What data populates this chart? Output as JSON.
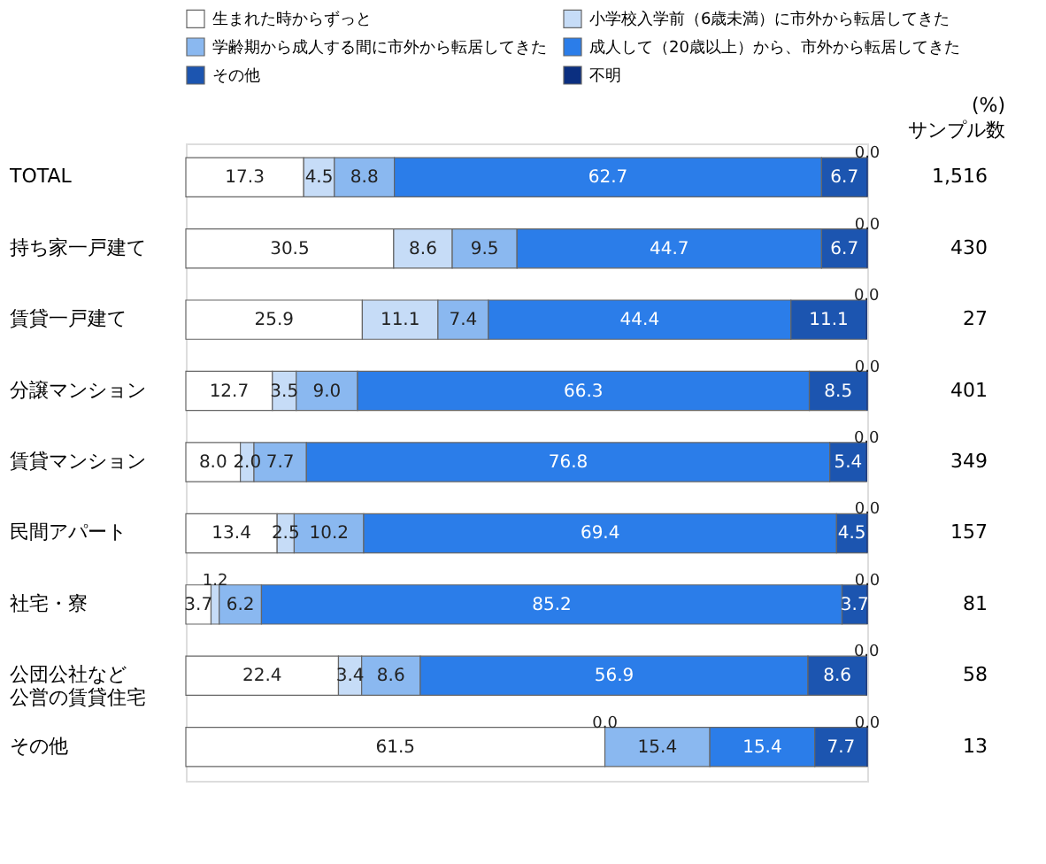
{
  "chart_data": {
    "type": "bar",
    "orientation": "horizontal",
    "stacked": true,
    "legend": "top",
    "categories": [
      "TOTAL",
      "持ち家一戸建て",
      "賃貸一戸建て",
      "分譲マンション",
      "賃貸マンション",
      "民間アパート",
      "社宅・寮",
      "公団公社など公営の賃貸住宅",
      "その他"
    ],
    "y2_categories": [
      "1,516",
      "430",
      "27",
      "401",
      "349",
      "157",
      "81",
      "58",
      "13"
    ],
    "annotations": [
      "(%)",
      "サンプル数"
    ],
    "series": [
      {
        "name": "生まれた時からずっと",
        "color": "#ffffff",
        "values": [
          17.3,
          30.5,
          25.9,
          12.7,
          8.0,
          13.4,
          3.7,
          22.4,
          61.5
        ],
        "value_labels": [
          "17.3",
          "30.5",
          "25.9",
          "12.7",
          "8.0",
          "13.4",
          "3.7",
          "22.4",
          "61.5"
        ]
      },
      {
        "name": "小学校入学前（6歳未満）に市外から転居してきた",
        "color": "#c6dcf7",
        "values": [
          4.5,
          8.6,
          11.1,
          3.5,
          2.0,
          2.5,
          1.2,
          3.4,
          0.0
        ],
        "value_labels": [
          "4.5",
          "8.6",
          "11.1",
          "3.5",
          "2.0",
          "2.5",
          "1.2",
          "3.4",
          "0.0"
        ]
      },
      {
        "name": "学齢期から成人する間に市外から転居してきた",
        "color": "#8ab8f0",
        "values": [
          8.8,
          9.5,
          7.4,
          9.0,
          7.7,
          10.2,
          6.2,
          8.6,
          15.4
        ],
        "value_labels": [
          "8.8",
          "9.5",
          "7.4",
          "9.0",
          "7.7",
          "10.2",
          "6.2",
          "8.6",
          "15.4"
        ]
      },
      {
        "name": "成人して（20歳以上）から、市外から転居してきた",
        "color": "#2b7de9",
        "values": [
          62.7,
          44.7,
          44.4,
          66.3,
          76.8,
          69.4,
          85.2,
          56.9,
          15.4
        ],
        "value_labels": [
          "62.7",
          "44.7",
          "44.4",
          "66.3",
          "76.8",
          "69.4",
          "85.2",
          "56.9",
          "15.4"
        ]
      },
      {
        "name": "その他",
        "color": "#1c55b0",
        "values": [
          6.7,
          6.7,
          11.1,
          8.5,
          5.4,
          4.5,
          3.7,
          8.6,
          7.7
        ],
        "value_labels": [
          "6.7",
          "6.7",
          "11.1",
          "8.5",
          "5.4",
          "4.5",
          "3.7",
          "8.6",
          "7.7"
        ]
      },
      {
        "name": "不明",
        "color": "#0b2f80",
        "values": [
          0.0,
          0.0,
          0.0,
          0.0,
          0.0,
          0.0,
          0.0,
          0.0,
          0.0
        ],
        "value_labels": [
          "0.0",
          "0.0",
          "0.0",
          "0.0",
          "0.0",
          "0.0",
          "0.0",
          "0.0",
          "0.0"
        ]
      }
    ]
  }
}
